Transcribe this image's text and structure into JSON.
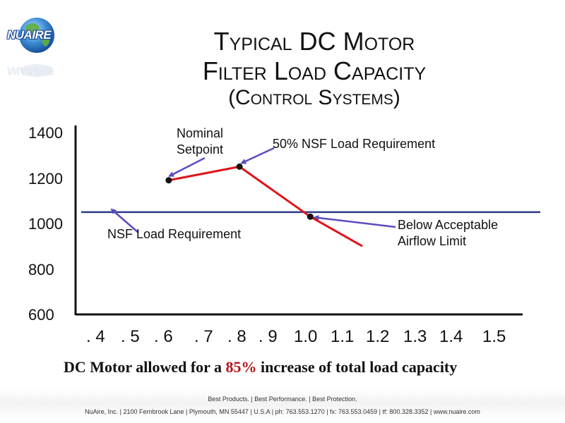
{
  "logo": {
    "text": "NUAIRE"
  },
  "title_line1": "Typical DC Motor",
  "title_line2": "Filter Load Capacity",
  "subtitle": "(Control Systems)",
  "chart_data": {
    "type": "line",
    "x_ticks": [
      ". 4",
      ". 5",
      ". 6",
      ". 7",
      ". 8",
      ". 9",
      "1.0",
      "1.1",
      "1.2",
      "1.3",
      "1.4",
      "1.5"
    ],
    "x_values": [
      0.4,
      0.5,
      0.6,
      0.7,
      0.8,
      0.9,
      1.0,
      1.1,
      1.2,
      1.3,
      1.4,
      1.5
    ],
    "y_ticks": [
      1400,
      1200,
      1000,
      800,
      600
    ],
    "xlim": [
      0.35,
      1.55
    ],
    "ylim": [
      600,
      1400
    ],
    "series": [
      {
        "points": [
          [
            0.6,
            1190
          ],
          [
            0.79,
            1250
          ],
          [
            0.98,
            1030
          ],
          [
            1.12,
            900
          ]
        ],
        "color": "#e0141a"
      }
    ],
    "reference_line": {
      "y": 1050,
      "color": "#2d3a8c"
    },
    "markers": [
      [
        0.6,
        1190
      ],
      [
        0.79,
        1250
      ],
      [
        0.98,
        1030
      ]
    ],
    "annotations": [
      {
        "lines": [
          "Nominal",
          "Setpoint"
        ]
      },
      {
        "lines": [
          "50% NSF Load Requirement"
        ]
      },
      {
        "lines": [
          "NSF Load Requirement"
        ]
      },
      {
        "lines": [
          "Below Acceptable",
          "Airflow Limit"
        ]
      }
    ],
    "arrow_color": "#5a4bc2"
  },
  "caption": {
    "before": "DC Motor allowed for a ",
    "pct": "85%",
    "after": " increase of total load capacity"
  },
  "footer": {
    "slogan": "Best Products.  |  Best Performance.  |  Best Protection.",
    "address": "NuAire, Inc.  |  2100 Fernbrook Lane  |  Plymouth, MN 55447  |  U.S.A  |  ph: 763.553.1270  |  fx: 763.553.0459  |  tf: 800.328.3352  |  www.nuaire.com"
  }
}
